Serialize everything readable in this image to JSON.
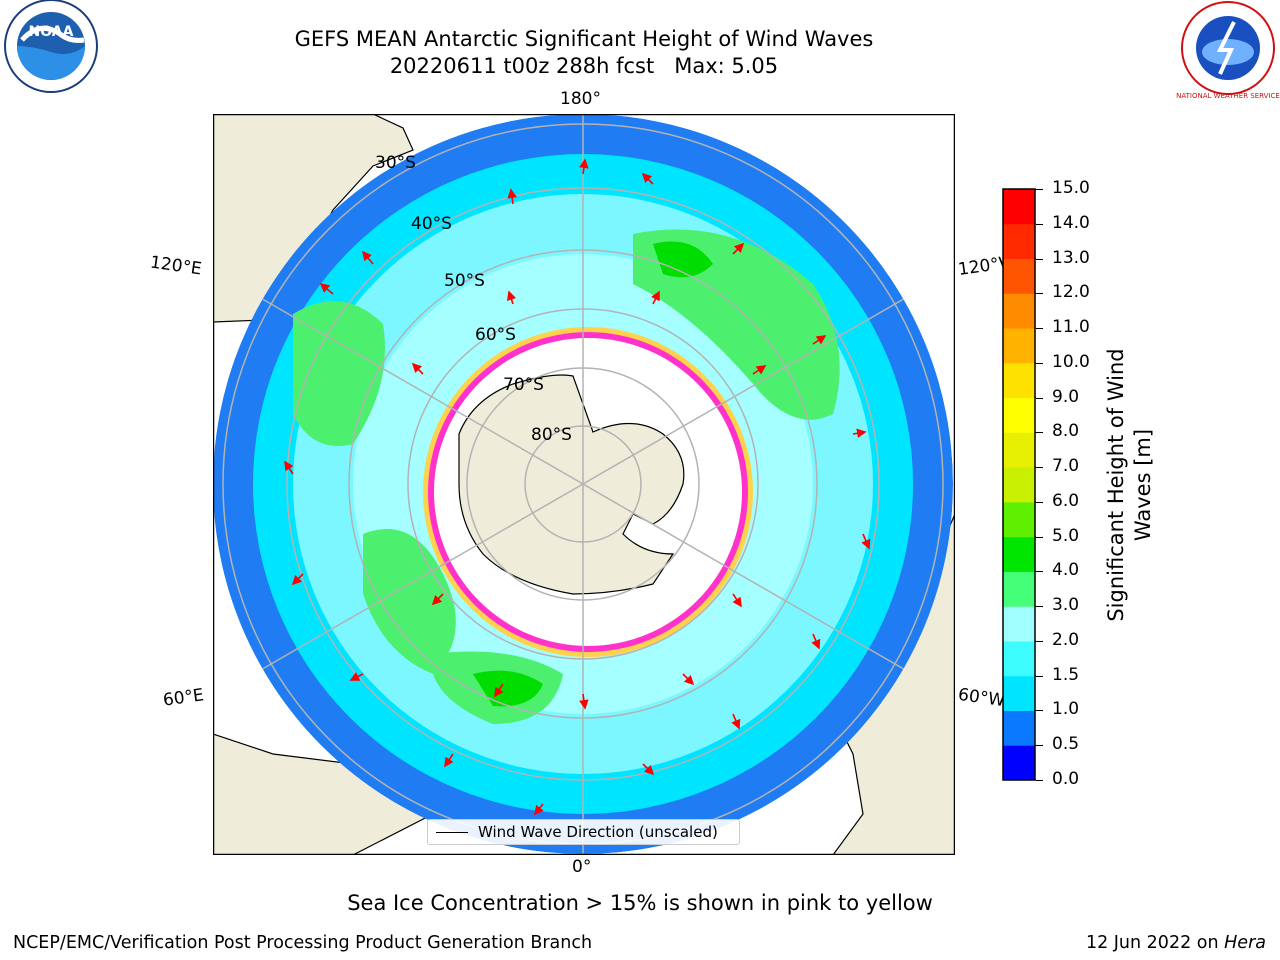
{
  "title": {
    "line1": "GEFS MEAN Antarctic Significant Height of Wind Waves",
    "line2": "20220611 t00z 288h fcst   Max: 5.05"
  },
  "longitude_labels": {
    "top": "180°",
    "bottom": "0°",
    "upper_left": "120°E",
    "upper_right": "120°W",
    "lower_left": "60°E",
    "lower_right": "60°W"
  },
  "latitude_labels": [
    "30°S",
    "40°S",
    "50°S",
    "60°S",
    "70°S",
    "80°S"
  ],
  "legend": {
    "label": "Wind Wave Direction (unscaled)"
  },
  "colorbar": {
    "title_line1": "Significant Height of Wind",
    "title_line2": "Waves [m]",
    "ticks": [
      "0.0",
      "0.5",
      "1.0",
      "1.5",
      "2.0",
      "3.0",
      "4.0",
      "5.0",
      "6.0",
      "7.0",
      "8.0",
      "9.0",
      "10.0",
      "11.0",
      "12.0",
      "13.0",
      "14.0",
      "15.0"
    ],
    "colors": [
      "#0000ff",
      "#0a78ff",
      "#00e5ff",
      "#3cfcff",
      "#a0ffff",
      "#44ff77",
      "#00e600",
      "#5ef000",
      "#c8f000",
      "#e6f000",
      "#ffff00",
      "#ffe100",
      "#ffb300",
      "#ff8c00",
      "#ff5500",
      "#ff2a00",
      "#ff0000"
    ]
  },
  "footer": {
    "note": "Sea Ice Concentration > 15% is shown in pink to yellow",
    "credit": "NCEP/EMC/Verification Post Processing Product Generation Branch",
    "date_prefix": "12 Jun 2022 on ",
    "date_host": "Hera"
  },
  "logos": {
    "left": "NOAA",
    "right": "NATIONAL WEATHER SERVICE"
  },
  "colors": {
    "land": "#efedd9",
    "ice": "#ffffff",
    "ice_edge": "#ff33cc",
    "arrow": "#ff0000",
    "grid": "#b3b3b3"
  }
}
